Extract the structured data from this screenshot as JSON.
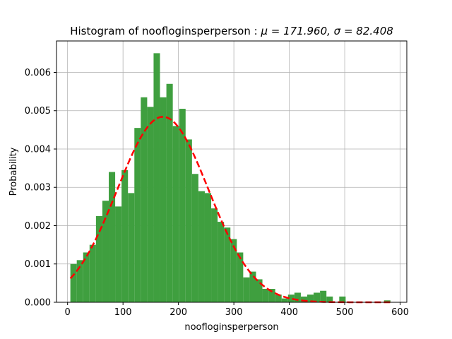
{
  "chart_data": {
    "type": "bar",
    "subtype": "histogram",
    "title_main": "Histogram of noofloginsperperson :",
    "title_stats": "μ = 171.960,  σ = 82.408",
    "xlabel": "noofloginsperperson",
    "ylabel": "Probability",
    "xlim": [
      -20,
      612
    ],
    "ylim": [
      0,
      0.00682
    ],
    "xticks": [
      0,
      100,
      200,
      300,
      400,
      500,
      600
    ],
    "yticks": [
      0.0,
      0.001,
      0.002,
      0.003,
      0.004,
      0.005,
      0.006
    ],
    "ytick_labels": [
      "0.000",
      "0.001",
      "0.002",
      "0.003",
      "0.004",
      "0.005",
      "0.006"
    ],
    "grid": true,
    "bar_color": "#3f9f3f",
    "curve_color": "#ff0000",
    "bins": {
      "start": 5,
      "width": 11.55,
      "values": [
        0.001,
        0.0011,
        0.0013,
        0.0015,
        0.00225,
        0.00265,
        0.0034,
        0.0025,
        0.00345,
        0.00285,
        0.00455,
        0.00535,
        0.0051,
        0.0065,
        0.00535,
        0.0057,
        0.0046,
        0.00505,
        0.00425,
        0.00335,
        0.0029,
        0.00285,
        0.00245,
        0.0021,
        0.00195,
        0.00165,
        0.0013,
        0.00065,
        0.0008,
        0.0006,
        0.00035,
        0.00035,
        0.0002,
        0.0001,
        0.0002,
        0.00025,
        0.00015,
        0.0002,
        0.00025,
        0.0003,
        0.00015,
        0.0,
        0.00015,
        0.0,
        0.0,
        0.0,
        0.0,
        0.0,
        0.0,
        5e-05
      ]
    },
    "fit_curve": {
      "mu": 171.96,
      "sigma": 82.408,
      "x_start": 5,
      "x_end": 583
    }
  }
}
